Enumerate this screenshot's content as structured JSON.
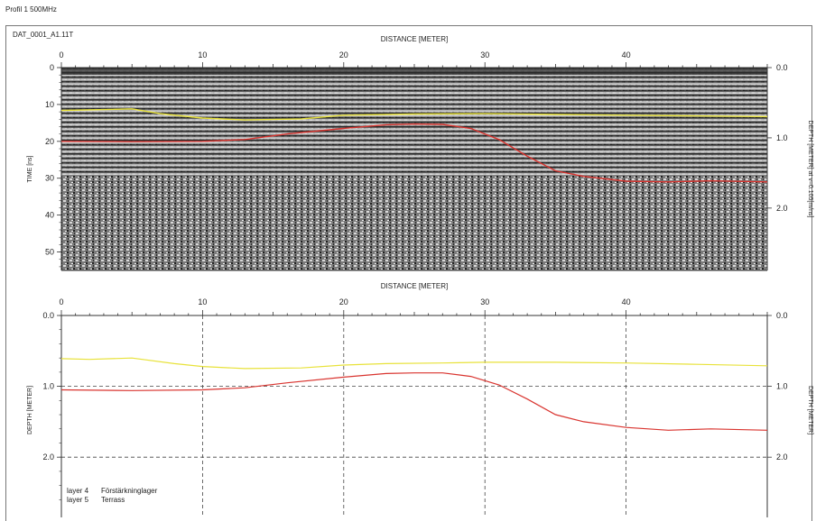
{
  "page": {
    "title": "Profil 1 500MHz",
    "file_name": "DAT_0001_A1.11T"
  },
  "chart_data": [
    {
      "type": "heatmap",
      "name": "radargram",
      "xlabel": "DISTANCE [METER]",
      "ylabel": "TIME [ns]",
      "y2label": "DEPTH [METER] at v=0.105[m/ns]",
      "xlim": [
        0,
        50
      ],
      "ylim": [
        55,
        0
      ],
      "x_ticks": [
        0,
        10,
        20,
        30,
        40
      ],
      "y_ticks": [
        0,
        10,
        20,
        30,
        40,
        50
      ],
      "y2_ticks": [
        "0.0",
        "1.0",
        "2.0"
      ],
      "series": [
        {
          "name": "layer 4",
          "color": "#e8e23a",
          "x": [
            0,
            3,
            5,
            7,
            10,
            13,
            17,
            20,
            25,
            30,
            35,
            40,
            45,
            50
          ],
          "y": [
            11.6,
            11.4,
            11.2,
            12.5,
            13.7,
            14.2,
            13.9,
            12.9,
            12.6,
            12.5,
            12.7,
            12.9,
            13.1,
            13.3
          ]
        },
        {
          "name": "layer 5",
          "color": "#d9342f",
          "x": [
            0,
            5,
            10,
            13,
            16,
            20,
            23,
            25,
            27,
            29,
            31,
            33,
            35,
            37,
            40,
            43,
            46,
            50
          ],
          "y": [
            20.0,
            20.1,
            20.0,
            19.5,
            18.0,
            16.5,
            15.5,
            15.3,
            15.4,
            16.5,
            19.5,
            24.0,
            28.0,
            29.5,
            30.8,
            31.0,
            30.7,
            31.0
          ]
        }
      ]
    },
    {
      "type": "line",
      "name": "depth-profile",
      "xlabel": "DISTANCE [METER]",
      "ylabel": "DEPTH [METER]",
      "xlim": [
        0,
        50
      ],
      "ylim": [
        2.85,
        0
      ],
      "x_ticks": [
        0,
        10,
        20,
        30,
        40
      ],
      "y_ticks": [
        "0.0",
        "1.0",
        "2.0"
      ],
      "grid": true,
      "legend": [
        {
          "name": "layer 4",
          "description": "Förstärkninglager",
          "color": "#e8e23a"
        },
        {
          "name": "layer 5",
          "description": "Terrass",
          "color": "#d9342f"
        }
      ],
      "series": [
        {
          "name": "layer 4",
          "color": "#e8e23a",
          "x": [
            0,
            2,
            5,
            8,
            10,
            13,
            17,
            20,
            23,
            27,
            30,
            35,
            40,
            45,
            50
          ],
          "y": [
            0.61,
            0.62,
            0.6,
            0.68,
            0.72,
            0.75,
            0.74,
            0.7,
            0.68,
            0.67,
            0.66,
            0.66,
            0.67,
            0.69,
            0.71
          ]
        },
        {
          "name": "layer 5",
          "color": "#d9342f",
          "x": [
            0,
            5,
            10,
            13,
            16,
            20,
            23,
            25,
            27,
            29,
            31,
            33,
            35,
            37,
            40,
            43,
            46,
            50
          ],
          "y": [
            1.05,
            1.06,
            1.05,
            1.02,
            0.95,
            0.87,
            0.82,
            0.81,
            0.81,
            0.86,
            0.98,
            1.18,
            1.4,
            1.5,
            1.58,
            1.62,
            1.6,
            1.62
          ]
        }
      ]
    }
  ]
}
